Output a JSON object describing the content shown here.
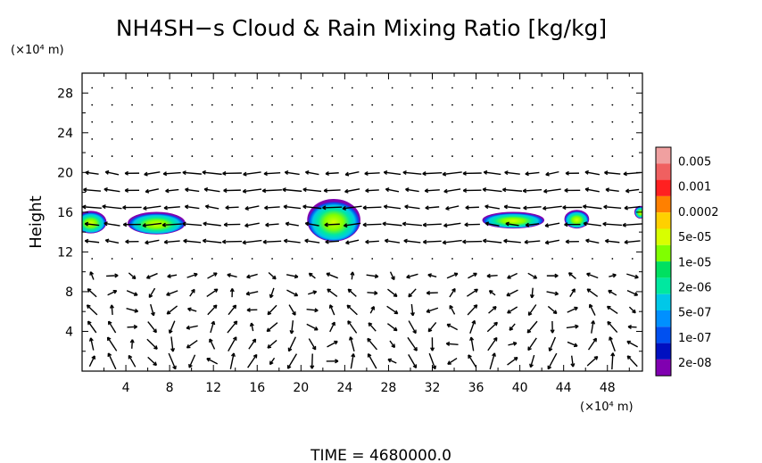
{
  "chart_data": {
    "type": "heatmap",
    "title": "NH4SH−s Cloud & Rain Mixing Ratio [kg/kg]",
    "ylabel": "Height",
    "y_unit": "(×10⁴ m)",
    "x_unit": "(×10⁴ m)",
    "time_label": "TIME = 4680000.0",
    "xlim": [
      0,
      51.2
    ],
    "ylim": [
      0,
      30
    ],
    "x_ticks": [
      4,
      8,
      12,
      16,
      20,
      24,
      28,
      32,
      36,
      40,
      44,
      48
    ],
    "y_ticks": [
      4,
      8,
      12,
      16,
      20,
      24,
      28
    ],
    "colorbar": {
      "labels": [
        "0.005",
        "0.001",
        "0.0002",
        "5e-05",
        "1e-05",
        "2e-06",
        "5e-07",
        "1e-07",
        "2e-08"
      ],
      "colors": [
        "#f0a0a0",
        "#f06060",
        "#ff2020",
        "#ff8000",
        "#ffd000",
        "#d8ff00",
        "#80ff00",
        "#00e060",
        "#00e8a0",
        "#00c8e8",
        "#0090ff",
        "#0050f0",
        "#0010c0",
        "#8000b0"
      ]
    },
    "clouds": [
      {
        "x": 0.8,
        "y": 15.0,
        "rx": 1.4,
        "ry": 1.1
      },
      {
        "x": 6.8,
        "y": 14.9,
        "rx": 2.6,
        "ry": 1.1
      },
      {
        "x": 23.0,
        "y": 15.2,
        "rx": 2.4,
        "ry": 2.1
      },
      {
        "x": 39.4,
        "y": 15.2,
        "rx": 2.8,
        "ry": 0.8
      },
      {
        "x": 45.2,
        "y": 15.3,
        "rx": 1.1,
        "ry": 0.9
      },
      {
        "x": 51.0,
        "y": 16.0,
        "rx": 0.5,
        "ry": 0.6
      }
    ],
    "grid": false,
    "legend_position": "right"
  }
}
